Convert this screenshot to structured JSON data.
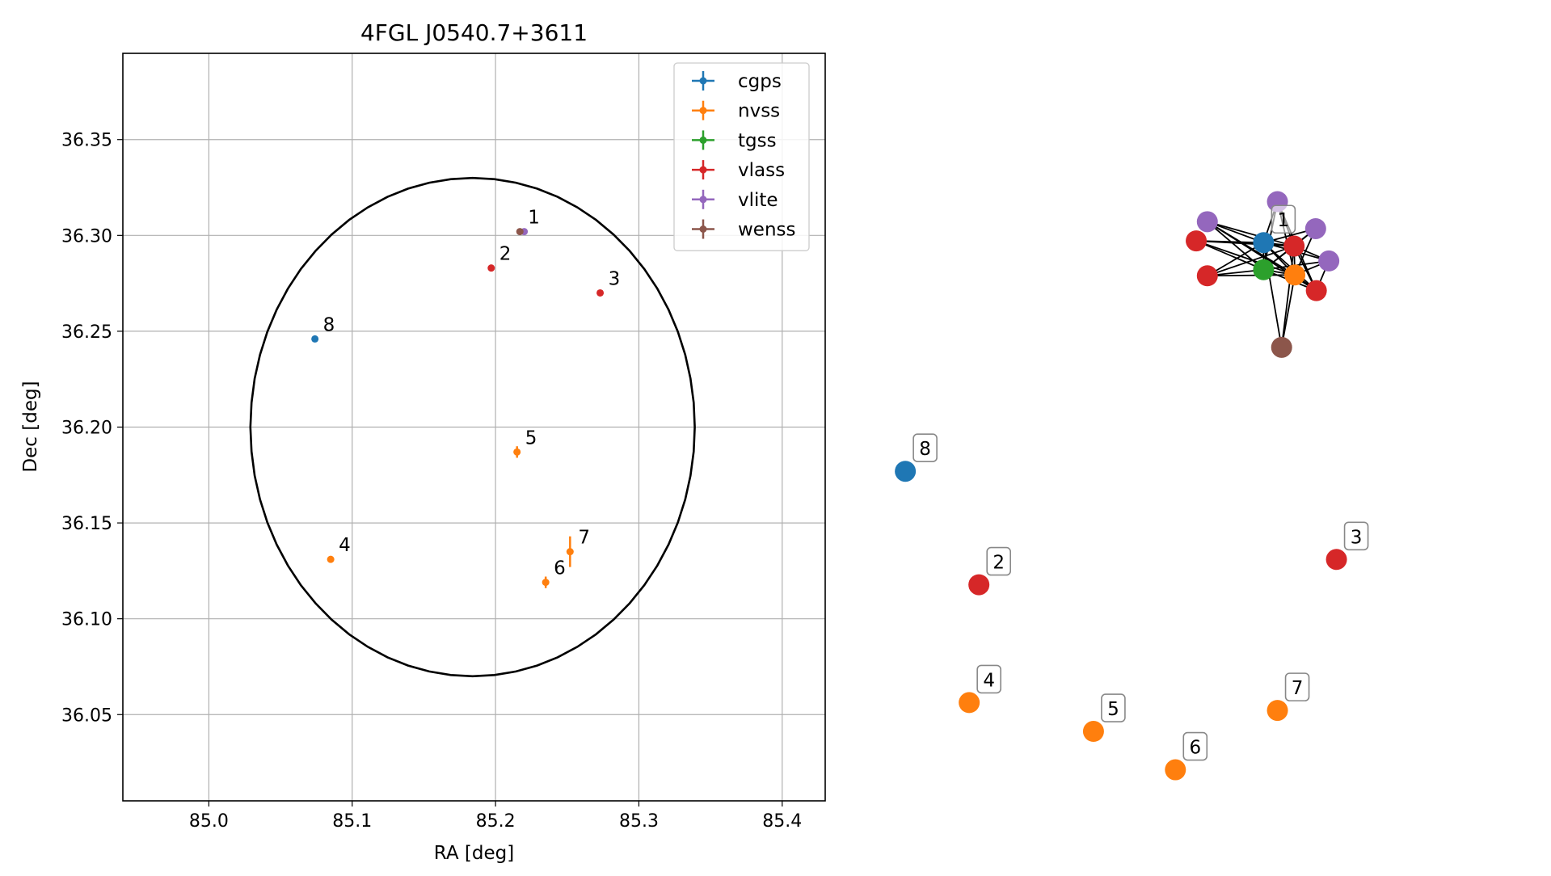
{
  "chart_data": [
    {
      "type": "scatter",
      "title": "4FGL J0540.7+3611",
      "xlabel": "RA [deg]",
      "ylabel": "Dec [deg]",
      "xlim": [
        84.94,
        85.43
      ],
      "ylim": [
        36.005,
        36.395
      ],
      "xticks": [
        85.0,
        85.1,
        85.2,
        85.3,
        85.4
      ],
      "xtick_labels": [
        "85.0",
        "85.1",
        "85.2",
        "85.3",
        "85.4"
      ],
      "yticks": [
        36.05,
        36.1,
        36.15,
        36.2,
        36.25,
        36.3,
        36.35
      ],
      "ytick_labels": [
        "36.05",
        "36.10",
        "36.15",
        "36.20",
        "36.25",
        "36.30",
        "36.35"
      ],
      "grid": true,
      "legend_position": "top-right",
      "error_ellipse": {
        "center": [
          85.184,
          36.2
        ],
        "ra_half_width": 0.155,
        "dec_half_height": 0.13
      },
      "series": [
        {
          "name": "cgps",
          "color": "#1f77b4",
          "points": [
            {
              "ra": 85.074,
              "dec": 36.246,
              "err": 0.0
            }
          ]
        },
        {
          "name": "nvss",
          "color": "#ff7f0e",
          "points": [
            {
              "ra": 85.085,
              "dec": 36.131,
              "err": 0.0
            },
            {
              "ra": 85.215,
              "dec": 36.187,
              "err": 0.003
            },
            {
              "ra": 85.235,
              "dec": 36.119,
              "err": 0.003
            },
            {
              "ra": 85.252,
              "dec": 36.135,
              "err": 0.008
            }
          ]
        },
        {
          "name": "tgss",
          "color": "#2ca02c",
          "points": []
        },
        {
          "name": "vlass",
          "color": "#d62728",
          "points": [
            {
              "ra": 85.197,
              "dec": 36.283,
              "err": 0.0
            },
            {
              "ra": 85.273,
              "dec": 36.27,
              "err": 0.0
            }
          ]
        },
        {
          "name": "vlite",
          "color": "#9467bd",
          "points": [
            {
              "ra": 85.22,
              "dec": 36.302,
              "err": 0.0
            }
          ]
        },
        {
          "name": "wenss",
          "color": "#8c564b",
          "points": [
            {
              "ra": 85.217,
              "dec": 36.302,
              "err": 0.0
            }
          ]
        }
      ],
      "point_labels": [
        {
          "text": "1",
          "ra": 85.217,
          "dec": 36.302
        },
        {
          "text": "2",
          "ra": 85.197,
          "dec": 36.283
        },
        {
          "text": "3",
          "ra": 85.273,
          "dec": 36.27
        },
        {
          "text": "4",
          "ra": 85.085,
          "dec": 36.131
        },
        {
          "text": "5",
          "ra": 85.215,
          "dec": 36.187
        },
        {
          "text": "6",
          "ra": 85.235,
          "dec": 36.119
        },
        {
          "text": "7",
          "ra": 85.252,
          "dec": 36.135
        },
        {
          "text": "8",
          "ra": 85.074,
          "dec": 36.246
        }
      ]
    },
    {
      "type": "network",
      "nodes": [
        {
          "id": "n0",
          "color": "#1f77b4",
          "x": 0.586,
          "y": 0.278,
          "label": "1"
        },
        {
          "id": "n1",
          "color": "#2ca02c",
          "x": 0.586,
          "y": 0.309
        },
        {
          "id": "n2",
          "color": "#ff7f0e",
          "x": 0.631,
          "y": 0.315
        },
        {
          "id": "n3",
          "color": "#9467bd",
          "x": 0.606,
          "y": 0.231
        },
        {
          "id": "n4",
          "color": "#9467bd",
          "x": 0.505,
          "y": 0.254
        },
        {
          "id": "n5",
          "color": "#9467bd",
          "x": 0.661,
          "y": 0.262
        },
        {
          "id": "n6",
          "color": "#9467bd",
          "x": 0.68,
          "y": 0.299
        },
        {
          "id": "n7",
          "color": "#d62728",
          "x": 0.489,
          "y": 0.276
        },
        {
          "id": "n8",
          "color": "#d62728",
          "x": 0.505,
          "y": 0.316
        },
        {
          "id": "n9",
          "color": "#d62728",
          "x": 0.63,
          "y": 0.282
        },
        {
          "id": "n10",
          "color": "#d62728",
          "x": 0.662,
          "y": 0.333
        },
        {
          "id": "n11",
          "color": "#8c564b",
          "x": 0.612,
          "y": 0.398
        },
        {
          "id": "p8",
          "color": "#1f77b4",
          "x": 0.07,
          "y": 0.54,
          "label": "8"
        },
        {
          "id": "p2",
          "color": "#d62728",
          "x": 0.176,
          "y": 0.67,
          "label": "2"
        },
        {
          "id": "p3",
          "color": "#d62728",
          "x": 0.691,
          "y": 0.641,
          "label": "3"
        },
        {
          "id": "p4",
          "color": "#ff7f0e",
          "x": 0.162,
          "y": 0.805,
          "label": "4"
        },
        {
          "id": "p5",
          "color": "#ff7f0e",
          "x": 0.341,
          "y": 0.838,
          "label": "5"
        },
        {
          "id": "p6",
          "color": "#ff7f0e",
          "x": 0.459,
          "y": 0.882,
          "label": "6"
        },
        {
          "id": "p7",
          "color": "#ff7f0e",
          "x": 0.606,
          "y": 0.814,
          "label": "7"
        }
      ],
      "edges": [
        [
          "n0",
          "n1"
        ],
        [
          "n0",
          "n2"
        ],
        [
          "n0",
          "n3"
        ],
        [
          "n0",
          "n4"
        ],
        [
          "n0",
          "n5"
        ],
        [
          "n0",
          "n6"
        ],
        [
          "n0",
          "n7"
        ],
        [
          "n0",
          "n8"
        ],
        [
          "n0",
          "n9"
        ],
        [
          "n0",
          "n10"
        ],
        [
          "n0",
          "n11"
        ],
        [
          "n1",
          "n2"
        ],
        [
          "n1",
          "n3"
        ],
        [
          "n1",
          "n4"
        ],
        [
          "n1",
          "n5"
        ],
        [
          "n1",
          "n6"
        ],
        [
          "n1",
          "n7"
        ],
        [
          "n1",
          "n8"
        ],
        [
          "n1",
          "n9"
        ],
        [
          "n1",
          "n10"
        ],
        [
          "n2",
          "n3"
        ],
        [
          "n2",
          "n4"
        ],
        [
          "n2",
          "n5"
        ],
        [
          "n2",
          "n6"
        ],
        [
          "n2",
          "n7"
        ],
        [
          "n2",
          "n8"
        ],
        [
          "n2",
          "n9"
        ],
        [
          "n2",
          "n10"
        ],
        [
          "n2",
          "n11"
        ],
        [
          "n3",
          "n9"
        ],
        [
          "n3",
          "n10"
        ],
        [
          "n4",
          "n9"
        ],
        [
          "n4",
          "n10"
        ],
        [
          "n5",
          "n9"
        ],
        [
          "n6",
          "n9"
        ],
        [
          "n6",
          "n10"
        ],
        [
          "n7",
          "n9"
        ],
        [
          "n8",
          "n9"
        ],
        [
          "n9",
          "n10"
        ],
        [
          "n9",
          "n11"
        ]
      ]
    }
  ]
}
